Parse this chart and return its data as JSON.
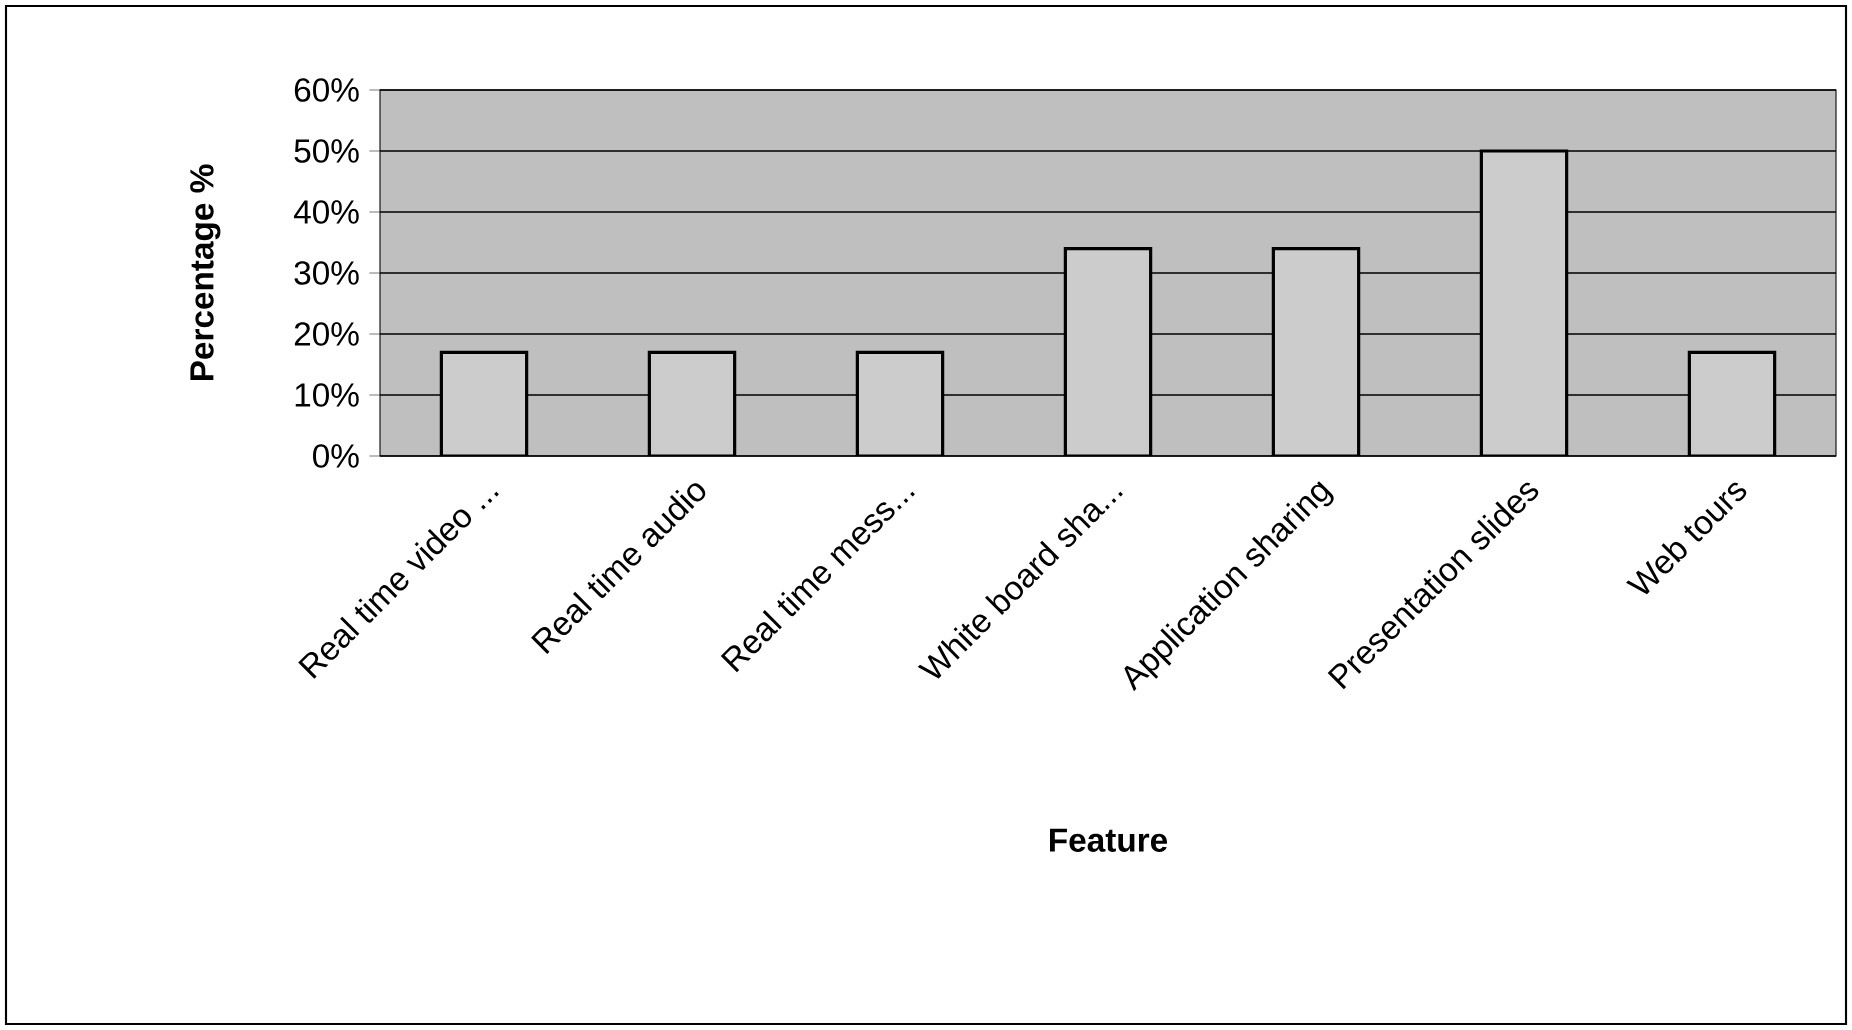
{
  "chart_data": {
    "type": "bar",
    "xlabel": "Feature",
    "ylabel": "Percentage %",
    "categories": [
      "Real time video ...",
      "Real time audio",
      "Real time mess...",
      "White board sha...",
      "Application sharing",
      "Presentation slides",
      "Web tours"
    ],
    "values": [
      17,
      17,
      17,
      34,
      34,
      50,
      17
    ],
    "color": "#cccccc",
    "ylim": [
      0,
      60
    ],
    "yticks": [
      {
        "value": 0,
        "label": "0%"
      },
      {
        "value": 10,
        "label": "10%"
      },
      {
        "value": 20,
        "label": "20%"
      },
      {
        "value": 30,
        "label": "30%"
      },
      {
        "value": 40,
        "label": "40%"
      },
      {
        "value": 50,
        "label": "50%"
      },
      {
        "value": 60,
        "label": "60%"
      }
    ],
    "grid": "y"
  }
}
